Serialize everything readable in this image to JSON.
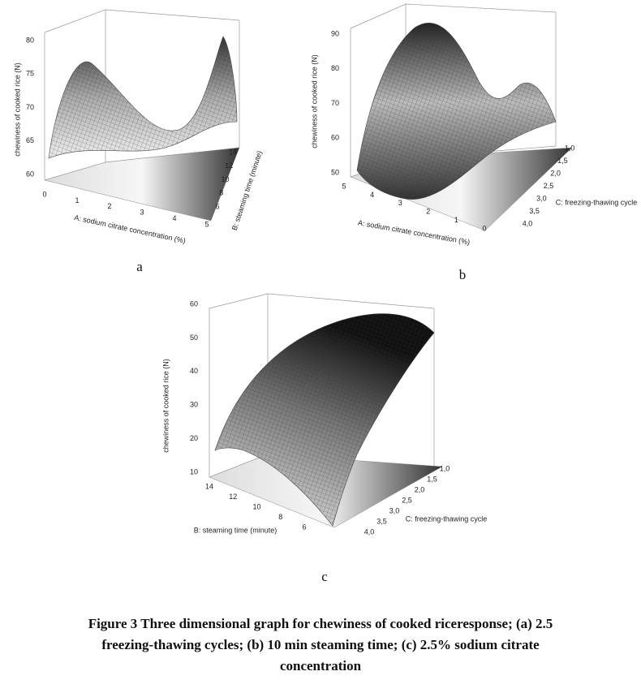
{
  "figure": {
    "panels": [
      {
        "letter": "a",
        "z_label": "chewiness of cooked rice (N)",
        "z_ticks": [
          "60",
          "65",
          "70",
          "75",
          "80"
        ],
        "x_label": "A: sodium citrate concentration (%)",
        "x_ticks": [
          "0",
          "1",
          "2",
          "3",
          "4",
          "5"
        ],
        "y_label": "B: steaming time (minute)",
        "y_ticks": [
          "6",
          "8",
          "10",
          "12",
          "14"
        ]
      },
      {
        "letter": "b",
        "z_label": "chewiness of cooked rice (N)",
        "z_ticks": [
          "50",
          "60",
          "70",
          "80",
          "90"
        ],
        "x_label": "A: sodium citrate concentration (%)",
        "x_ticks": [
          "5",
          "4",
          "3",
          "2",
          "1",
          "0"
        ],
        "y_label": "C: freezing-thawing cycle",
        "y_ticks": [
          "1,0",
          "1,5",
          "2,0",
          "2,5",
          "3,0",
          "3,5",
          "4,0"
        ]
      },
      {
        "letter": "c",
        "z_label": "chewiness of cooked rice (N)",
        "z_ticks": [
          "10",
          "20",
          "30",
          "40",
          "50",
          "60"
        ],
        "x_label": "B: steaming time (minute)",
        "x_ticks": [
          "14",
          "12",
          "10",
          "8",
          "6"
        ],
        "y_label": "C: freezing-thawing cycle",
        "y_ticks": [
          "1,0",
          "1,5",
          "2,0",
          "2,5",
          "3,0",
          "3,5",
          "4,0"
        ]
      }
    ],
    "caption": [
      "Figure 3 Three dimensional graph for chewiness of cooked riceresponse; (a) 2.5",
      "freezing-thawing cycles; (b) 10 min steaming time; (c) 2.5% sodium citrate",
      "concentration"
    ]
  }
}
